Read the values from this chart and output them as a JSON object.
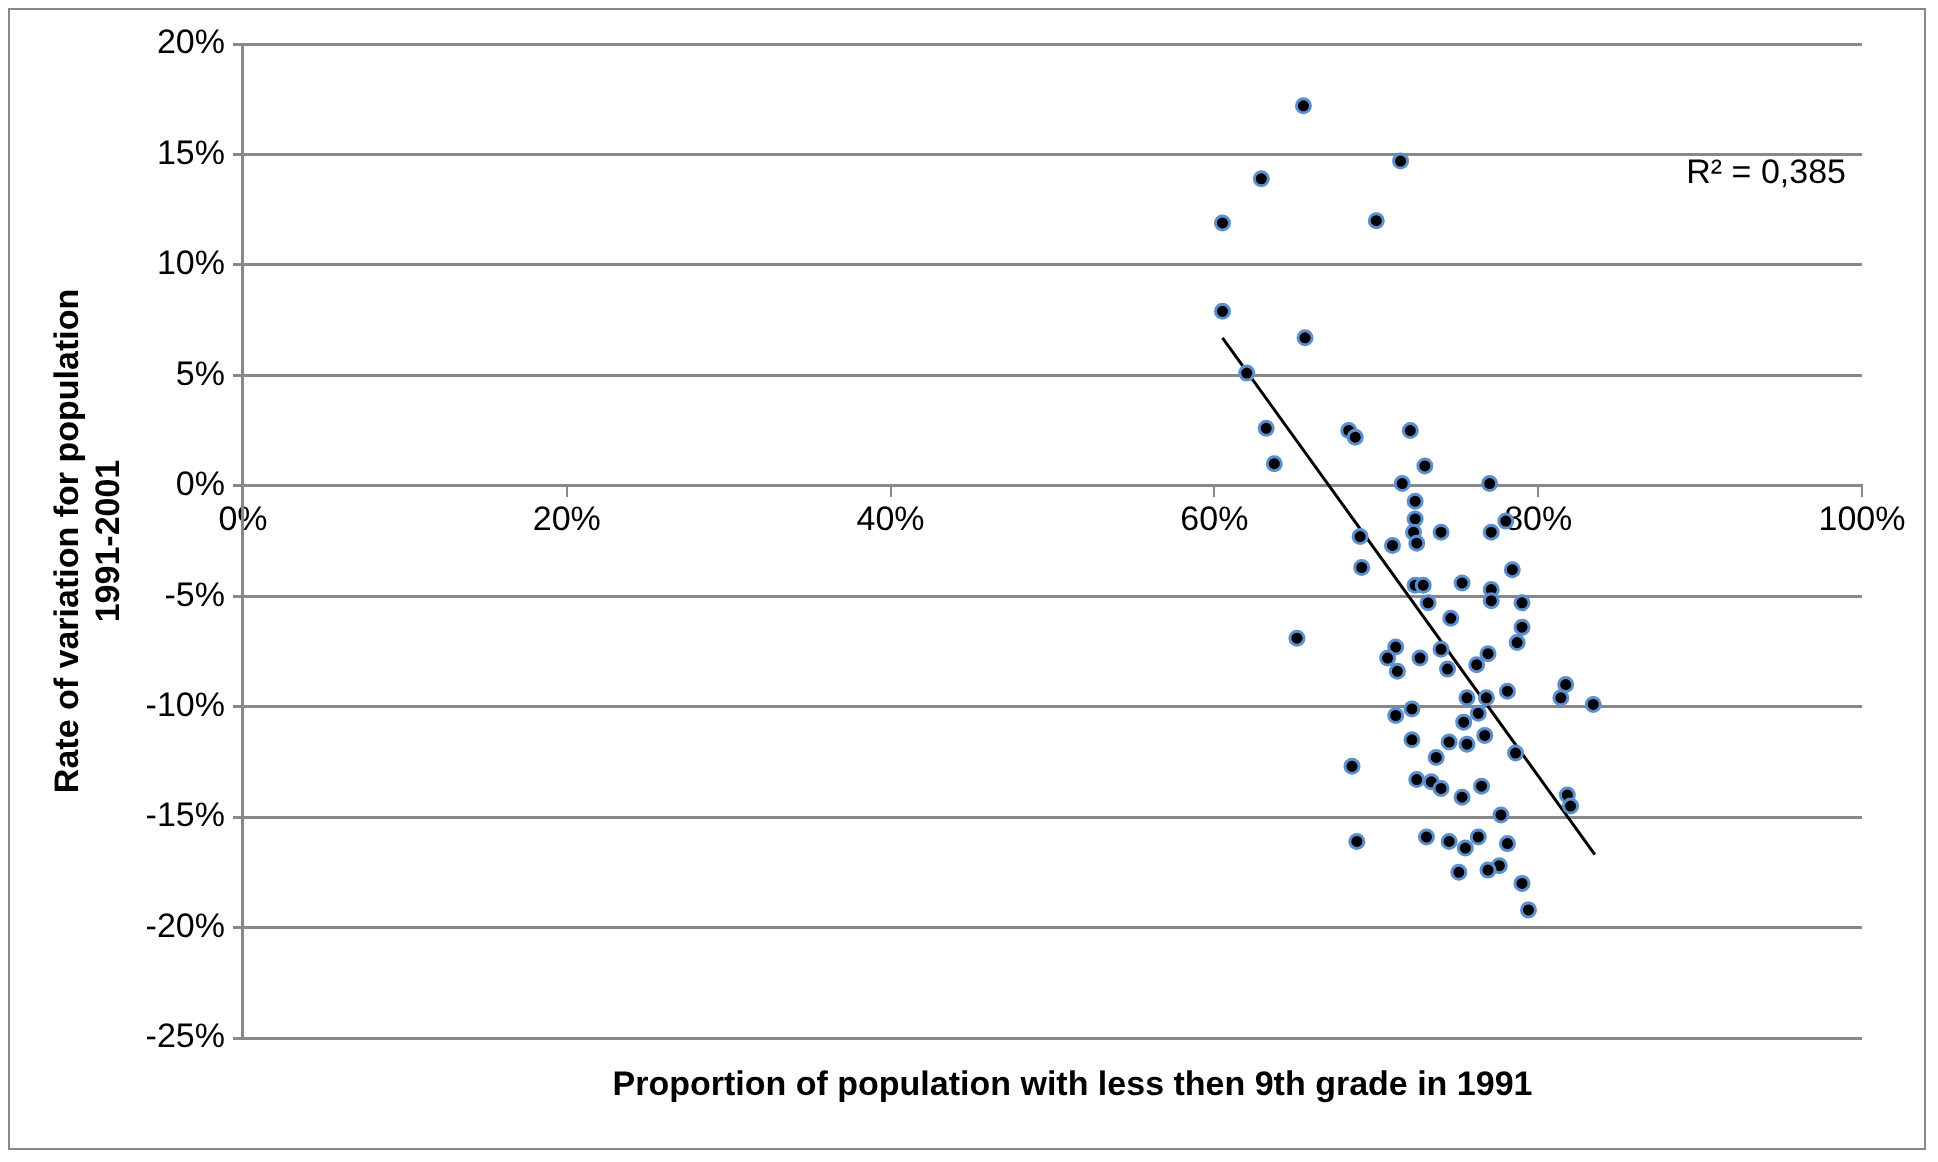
{
  "chart_data": {
    "type": "scatter",
    "xlabel": "Proportion of population with less then 9th grade in 1991",
    "ylabel": "Rate of variation for population 1991-2001",
    "annotations": [
      "R² = 0,385"
    ],
    "xlim": [
      0,
      100
    ],
    "xticks": [
      {
        "value": 0,
        "label": "0%"
      },
      {
        "value": 20,
        "label": "20%"
      },
      {
        "value": 40,
        "label": "40%"
      },
      {
        "value": 60,
        "label": "60%"
      },
      {
        "value": 80,
        "label": "80%"
      },
      {
        "value": 100,
        "label": "100%"
      }
    ],
    "ylim": [
      -25,
      20
    ],
    "yticks": [
      {
        "value": -25,
        "label": "-25%"
      },
      {
        "value": -20,
        "label": "-20%"
      },
      {
        "value": -15,
        "label": "-15%"
      },
      {
        "value": -10,
        "label": "-10%"
      },
      {
        "value": -5,
        "label": "-5%"
      },
      {
        "value": 0,
        "label": "0%"
      },
      {
        "value": 5,
        "label": "5%"
      },
      {
        "value": 10,
        "label": "10%"
      },
      {
        "value": 15,
        "label": "15%"
      },
      {
        "value": 20,
        "label": "20%"
      }
    ],
    "grid": "y",
    "legend": false,
    "marker": "circle",
    "series": [
      {
        "type": "scatter",
        "color": "#000000",
        "x": [
          65.5,
          62.9,
          60.5,
          71.5,
          70.0,
          60.5,
          65.6,
          62.0,
          63.2,
          63.7,
          68.3,
          68.7,
          72.1,
          73.0,
          71.6,
          77.0,
          72.4,
          72.4,
          78.0,
          74.0,
          72.3,
          77.1,
          69.0,
          72.5,
          71.0,
          69.1,
          72.4,
          72.9,
          75.3,
          77.1,
          78.4,
          77.1,
          79.0,
          73.2,
          74.6,
          79.0,
          78.7,
          65.1,
          71.2,
          70.7,
          72.7,
          74.0,
          76.9,
          76.2,
          71.3,
          74.4,
          81.7,
          81.4,
          78.1,
          75.6,
          76.8,
          83.4,
          76.3,
          72.2,
          71.2,
          75.4,
          76.7,
          72.2,
          74.5,
          75.6,
          78.6,
          73.7,
          68.5,
          72.5,
          73.4,
          74.0,
          76.5,
          75.3,
          81.8,
          82.0,
          77.7,
          68.8,
          73.1,
          74.5,
          76.3,
          75.5,
          78.1,
          77.6,
          76.9,
          75.1,
          79.0,
          79.4
        ],
        "values": [
          17.2,
          13.9,
          11.9,
          14.7,
          12.0,
          7.9,
          6.7,
          5.1,
          2.6,
          1.0,
          2.5,
          2.2,
          2.5,
          0.9,
          0.1,
          0.1,
          -0.7,
          -1.5,
          -1.6,
          -2.1,
          -2.1,
          -2.1,
          -2.3,
          -2.6,
          -2.7,
          -3.7,
          -4.5,
          -4.5,
          -4.4,
          -4.7,
          -3.8,
          -5.2,
          -5.3,
          -5.3,
          -6.0,
          -6.4,
          -7.1,
          -6.9,
          -7.3,
          -7.8,
          -7.8,
          -7.4,
          -7.6,
          -8.1,
          -8.4,
          -8.3,
          -9.0,
          -9.6,
          -9.3,
          -9.6,
          -9.6,
          -9.9,
          -10.3,
          -10.1,
          -10.4,
          -10.7,
          -11.3,
          -11.5,
          -11.6,
          -11.7,
          -12.1,
          -12.3,
          -12.7,
          -13.3,
          -13.4,
          -13.7,
          -13.6,
          -14.1,
          -14.0,
          -14.5,
          -14.9,
          -16.1,
          -15.9,
          -16.1,
          -15.9,
          -16.4,
          -16.2,
          -17.2,
          -17.4,
          -17.5,
          -18.0,
          -19.2
        ]
      },
      {
        "type": "line",
        "color": "#000000",
        "marker": "none",
        "x": [
          60.5,
          83.5
        ],
        "values": [
          6.7,
          -16.7
        ]
      }
    ]
  }
}
